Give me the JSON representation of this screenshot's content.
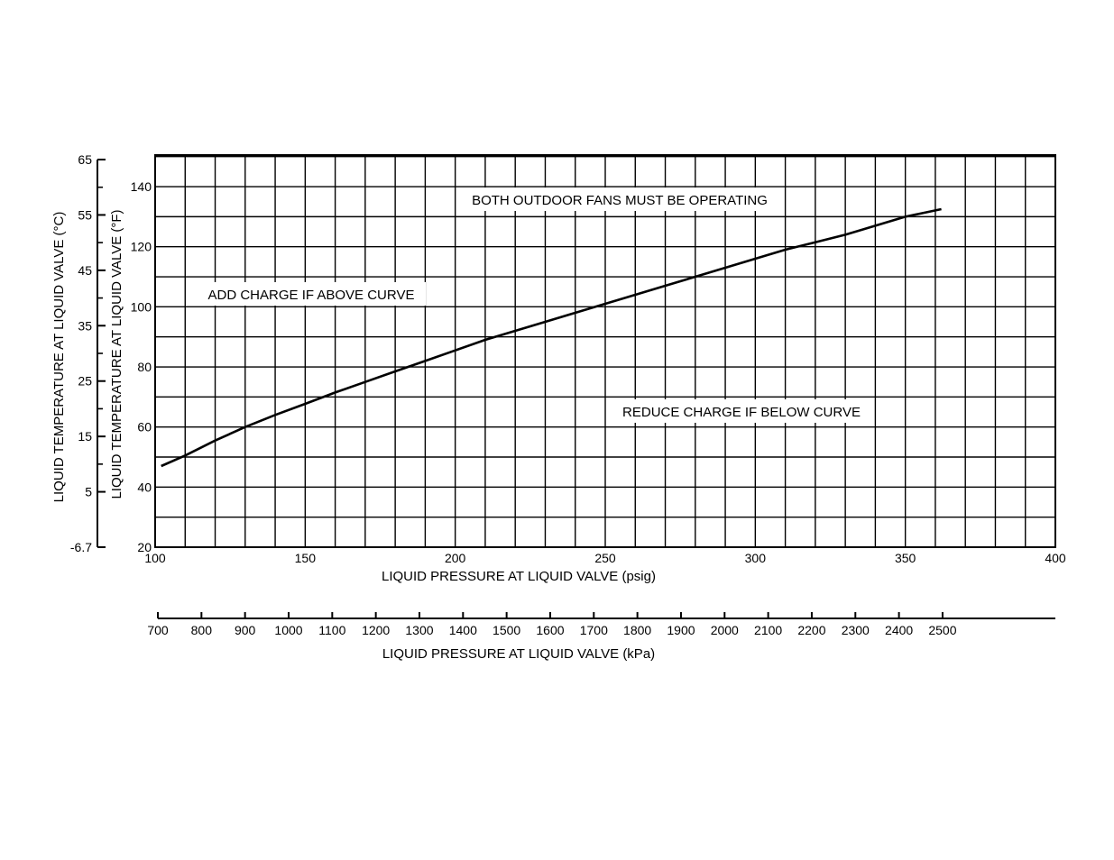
{
  "chart_data": {
    "type": "line",
    "title": "",
    "xlabel": "LIQUID PRESSURE AT LIQUID VALVE (psig)",
    "ylabel": "LIQUID TEMPERATURE AT LIQUID VALVE (°F)",
    "xlim": [
      100,
      400
    ],
    "ylim": [
      20,
      150
    ],
    "x_ticks": [
      100,
      150,
      200,
      250,
      300,
      350,
      400
    ],
    "y_ticks": [
      20,
      40,
      60,
      80,
      100,
      120,
      140
    ],
    "grid": true,
    "secondary_y": {
      "label": "LIQUID TEMPERATURE AT LIQUID VALVE (°C)",
      "ticks": [
        65,
        55,
        45,
        35,
        25,
        15,
        5,
        -6.7
      ]
    },
    "secondary_x": {
      "label": "LIQUID PRESSURE AT LIQUID VALVE (kPa)",
      "ticks": [
        700,
        800,
        900,
        1000,
        1100,
        1200,
        1300,
        1400,
        1500,
        1600,
        1700,
        1800,
        1900,
        2000,
        2100,
        2200,
        2300,
        2400,
        2500
      ]
    },
    "annotations": {
      "top": "BOTH OUTDOOR FANS MUST BE OPERATING",
      "above": "ADD CHARGE IF ABOVE CURVE",
      "below": "REDUCE CHARGE IF BELOW CURVE"
    },
    "series": [
      {
        "x": [
          102,
          110,
          120,
          130,
          140,
          150,
          160,
          170,
          180,
          190,
          200,
          210,
          220,
          230,
          240,
          250,
          260,
          270,
          280,
          290,
          300,
          310,
          320,
          330,
          340,
          350,
          362
        ],
        "y": [
          47,
          50.5,
          55.5,
          60,
          64,
          67.7,
          71.5,
          75,
          78.5,
          82,
          85.5,
          89,
          92,
          95,
          98,
          101,
          104,
          107,
          110,
          113,
          116,
          119,
          121.5,
          124,
          127,
          130,
          132.5
        ]
      }
    ]
  }
}
